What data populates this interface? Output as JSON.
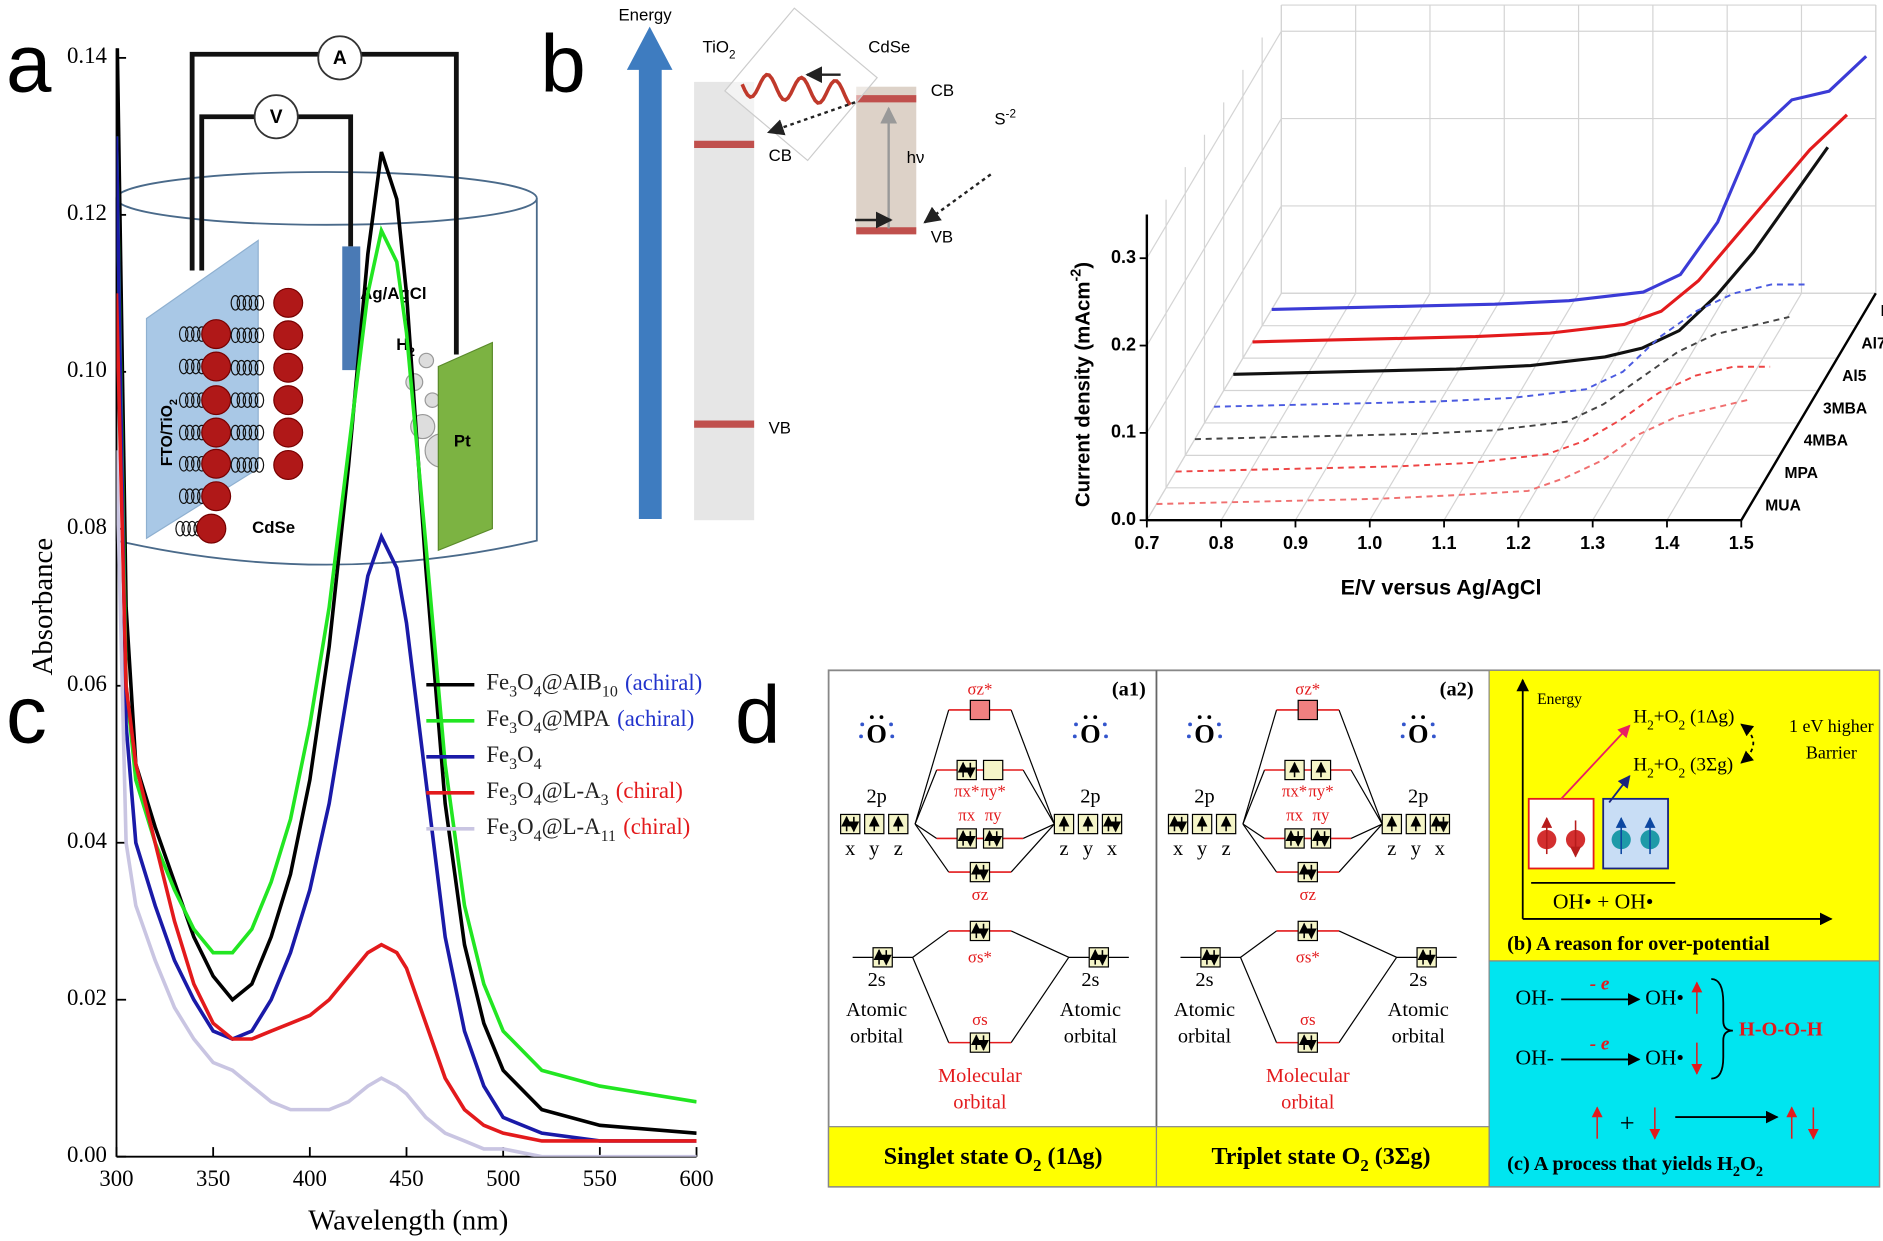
{
  "panel_labels": [
    "a",
    "b",
    "c",
    "d"
  ],
  "cell": {
    "ammeter": "A",
    "voltmeter": "V",
    "reference": "Ag/AgCl",
    "gas": "H2",
    "counter": "Pt",
    "working": "FTO/TiO2",
    "dots": "CdSe"
  },
  "band": {
    "axis": "Energy",
    "left": "TiO2",
    "right": "CdSe",
    "cb_right": "CB",
    "cb_left": "CB",
    "photon": "hν",
    "donor": "S-2",
    "vb_right": "VB",
    "vb_left": "VB"
  },
  "chart_data": [
    {
      "type": "line3d",
      "ylabel": "Current density (mAcm-2)",
      "xlabel": "E/V versus Ag/AgCl",
      "x": [
        0.7,
        0.8,
        0.9,
        1.0,
        1.1,
        1.2,
        1.25,
        1.3,
        1.35,
        1.4,
        1.45,
        1.5
      ],
      "xlim": [
        0.7,
        1.5
      ],
      "xticks": [
        0.7,
        0.8,
        0.9,
        {
          "value": 1,
          "label": "1.0"
        },
        1.1,
        1.2,
        1.3,
        1.4,
        1.5
      ],
      "ylim": [
        0,
        0.33
      ],
      "yticks": [
        {
          "value": 0,
          "label": "0.0"
        },
        0.1,
        0.2,
        0.3
      ],
      "grid": true,
      "series": [
        {
          "name": "DNA",
          "color": "#3b3bd6",
          "dash": false,
          "values": [
            0,
            0.002,
            0.004,
            0.006,
            0.01,
            0.02,
            0.04,
            0.1,
            0.2,
            0.24,
            0.25,
            0.29
          ]
        },
        {
          "name": "Al7",
          "color": "#e31a1c",
          "dash": false,
          "values": [
            0,
            0.002,
            0.004,
            0.006,
            0.01,
            0.02,
            0.035,
            0.07,
            0.12,
            0.17,
            0.22,
            0.26
          ]
        },
        {
          "name": "Al5",
          "color": "#111111",
          "dash": false,
          "values": [
            0,
            0.002,
            0.004,
            0.006,
            0.01,
            0.02,
            0.03,
            0.05,
            0.09,
            0.14,
            0.2,
            0.26
          ]
        },
        {
          "name": "3MBA",
          "color": "#4a5ae0",
          "dash": true,
          "values": [
            0,
            0.002,
            0.004,
            0.006,
            0.01,
            0.02,
            0.04,
            0.08,
            0.11,
            0.13,
            0.14,
            0.14
          ]
        },
        {
          "name": "4MBA",
          "color": "#444444",
          "dash": true,
          "values": [
            0,
            0.002,
            0.004,
            0.006,
            0.01,
            0.02,
            0.04,
            0.07,
            0.1,
            0.12,
            0.13,
            0.14
          ]
        },
        {
          "name": "MPA",
          "color": "#ee4444",
          "dash": true,
          "values": [
            0,
            0.002,
            0.004,
            0.006,
            0.01,
            0.02,
            0.035,
            0.06,
            0.09,
            0.11,
            0.12,
            0.12
          ]
        },
        {
          "name": "MUA",
          "color": "#f07070",
          "dash": true,
          "values": [
            0,
            0.002,
            0.004,
            0.006,
            0.01,
            0.015,
            0.03,
            0.05,
            0.08,
            0.1,
            0.11,
            0.12
          ]
        }
      ]
    },
    {
      "type": "line",
      "xlabel": "Wavelength (nm)",
      "ylabel": "Absorbance",
      "x": [
        300,
        305,
        310,
        320,
        330,
        340,
        350,
        360,
        370,
        380,
        390,
        400,
        410,
        420,
        430,
        437,
        445,
        450,
        460,
        470,
        480,
        490,
        500,
        520,
        550,
        600
      ],
      "xlim": [
        300,
        600
      ],
      "xticks": [
        300,
        350,
        400,
        450,
        500,
        550,
        600
      ],
      "ylim": [
        0,
        0.14
      ],
      "yticks": [
        {
          "value": 0,
          "label": "0.00"
        },
        0.02,
        0.04,
        0.06,
        0.08,
        {
          "value": 0.1,
          "label": "0.10"
        },
        0.12,
        0.14
      ],
      "legend": "upper right",
      "series": [
        {
          "name": "Fe3O4@AIB10",
          "tag": "(achiral)",
          "tag_color": "#2233cc",
          "color": "#000000",
          "values": [
            0.148,
            0.07,
            0.05,
            0.042,
            0.035,
            0.028,
            0.023,
            0.02,
            0.022,
            0.028,
            0.036,
            0.048,
            0.065,
            0.088,
            0.115,
            0.128,
            0.122,
            0.11,
            0.075,
            0.045,
            0.027,
            0.017,
            0.011,
            0.006,
            0.004,
            0.003
          ]
        },
        {
          "name": "Fe3O4@MPA",
          "tag": "(achiral)",
          "tag_color": "#2233cc",
          "color": "#22e622",
          "values": [
            0.13,
            0.06,
            0.048,
            0.04,
            0.034,
            0.029,
            0.026,
            0.026,
            0.029,
            0.035,
            0.043,
            0.055,
            0.07,
            0.09,
            0.11,
            0.118,
            0.114,
            0.105,
            0.078,
            0.05,
            0.032,
            0.022,
            0.016,
            0.011,
            0.009,
            0.007
          ]
        },
        {
          "name": "Fe3O4",
          "color": "#1a1aa8",
          "values": [
            0.13,
            0.055,
            0.04,
            0.032,
            0.025,
            0.02,
            0.016,
            0.015,
            0.016,
            0.02,
            0.026,
            0.034,
            0.045,
            0.06,
            0.074,
            0.079,
            0.075,
            0.068,
            0.048,
            0.028,
            0.016,
            0.009,
            0.005,
            0.003,
            0.002,
            0.002
          ]
        },
        {
          "name": "Fe3O4@L-A3",
          "tag": "(chiral)",
          "tag_color": "#e31a1c",
          "color": "#e31a1c",
          "values": [
            0.11,
            0.06,
            0.05,
            0.04,
            0.03,
            0.022,
            0.017,
            0.015,
            0.015,
            0.016,
            0.017,
            0.018,
            0.02,
            0.023,
            0.026,
            0.027,
            0.026,
            0.024,
            0.017,
            0.01,
            0.006,
            0.004,
            0.003,
            0.002,
            0.002,
            0.002
          ]
        },
        {
          "name": "Fe3O4@L-A11",
          "tag": "(chiral)",
          "tag_color": "#e31a1c",
          "color": "#c9c5e2",
          "values": [
            0.09,
            0.04,
            0.032,
            0.025,
            0.019,
            0.015,
            0.012,
            0.011,
            0.009,
            0.007,
            0.006,
            0.006,
            0.006,
            0.007,
            0.009,
            0.01,
            0.009,
            0.008,
            0.005,
            0.003,
            0.002,
            0.001,
            0.001,
            0,
            0,
            0
          ]
        }
      ]
    }
  ],
  "mo": {
    "panels": [
      {
        "tag": "(a1)",
        "caption": "Singlet state O2 (1Δg)"
      },
      {
        "tag": "(a2)",
        "caption": "Triplet state O2 (3Σg)"
      }
    ],
    "atom": "O",
    "p_level": "2p",
    "s_level": "2s",
    "axes_left": [
      "x",
      "y",
      "z"
    ],
    "axes_right": [
      "z",
      "y",
      "x"
    ],
    "sigma_p_star": "σz*",
    "pi_star": [
      "πx*",
      "πy*"
    ],
    "pi": [
      "πx",
      "πy"
    ],
    "sigma_p": "σz",
    "sigma_s_star": "σs*",
    "sigma_s": "σs",
    "atomic": [
      "Atomic",
      "orbital"
    ],
    "molecular": [
      "Molecular",
      "orbital"
    ]
  },
  "energy_box": {
    "caption": "(b) A reason for over-potential",
    "axis": "Energy",
    "singlet": "H2+O2 (1Δg)",
    "triplet": "H2+O2 (3Σg)",
    "barrier": [
      "1 eV higher",
      "Barrier"
    ],
    "base": "OH• + OH•"
  },
  "process_box": {
    "caption": "(c) A process that yields H2O2",
    "reactant": "OH-",
    "step": "- e",
    "product": "OH•",
    "result": "H-O-O-H",
    "plus": "+"
  }
}
